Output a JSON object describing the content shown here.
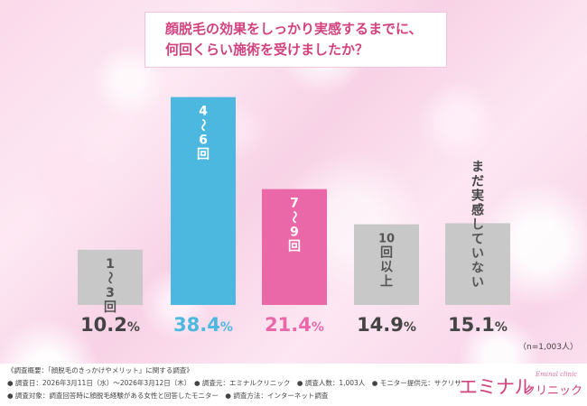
{
  "title": {
    "line1": "顔脱毛の効果をしっかり実感するまでに、",
    "line2": "何回くらい施術を受けましたか？"
  },
  "chart_data": {
    "type": "bar",
    "categories": [
      "1〜3回",
      "4〜6回",
      "7〜9回",
      "10回以上",
      "まだ実感していない"
    ],
    "category_label_chars": [
      [
        "1",
        "〜",
        "3",
        "回"
      ],
      [
        "4",
        "〜",
        "6",
        "回"
      ],
      [
        "7",
        "〜",
        "9",
        "回"
      ],
      [
        "10",
        "回",
        "以",
        "上"
      ],
      [
        "ま",
        "だ",
        "実",
        "感",
        "し",
        "て",
        "い",
        "な",
        "い"
      ]
    ],
    "values": [
      10.2,
      38.4,
      21.4,
      14.9,
      15.1
    ],
    "value_labels": [
      {
        "num": "10.2",
        "unit": "%"
      },
      {
        "num": "38.4",
        "unit": "%"
      },
      {
        "num": "21.4",
        "unit": "%"
      },
      {
        "num": "14.9",
        "unit": "%"
      },
      {
        "num": "15.1",
        "unit": "%"
      }
    ],
    "colors": [
      "#c8c8c8",
      "#4cb8df",
      "#ea68a8",
      "#c8c8c8",
      "#c8c8c8"
    ],
    "value_text_colors": [
      "#444444",
      "#4cb8df",
      "#ea68a8",
      "#444444",
      "#444444"
    ],
    "ylim": [
      0,
      40
    ],
    "sample_note": "（n=1,003人）"
  },
  "footer": {
    "line1": "《調査概要：「顔脱毛のきっかけやメリット」に関する調査》",
    "line2": "● 調査日：2026年3月11日（水）〜2026年3月12日（木）　● 調査元：エミナルクリニック　● 調査人数：1,003人　● モニター提供元：サクリサ",
    "line3": "● 調査対象：調査回答時に顔脱毛経験がある女性と回答したモニター　● 調査方法：インターネット調査"
  },
  "logo": {
    "main": "エミナル",
    "sub": "Eminal clinic",
    "kana": "クリニック"
  },
  "colors": {
    "accent": "#d2427f",
    "gray_bar": "#c8c8c8",
    "blue_bar": "#4cb8df",
    "pink_bar": "#ea68a8"
  }
}
